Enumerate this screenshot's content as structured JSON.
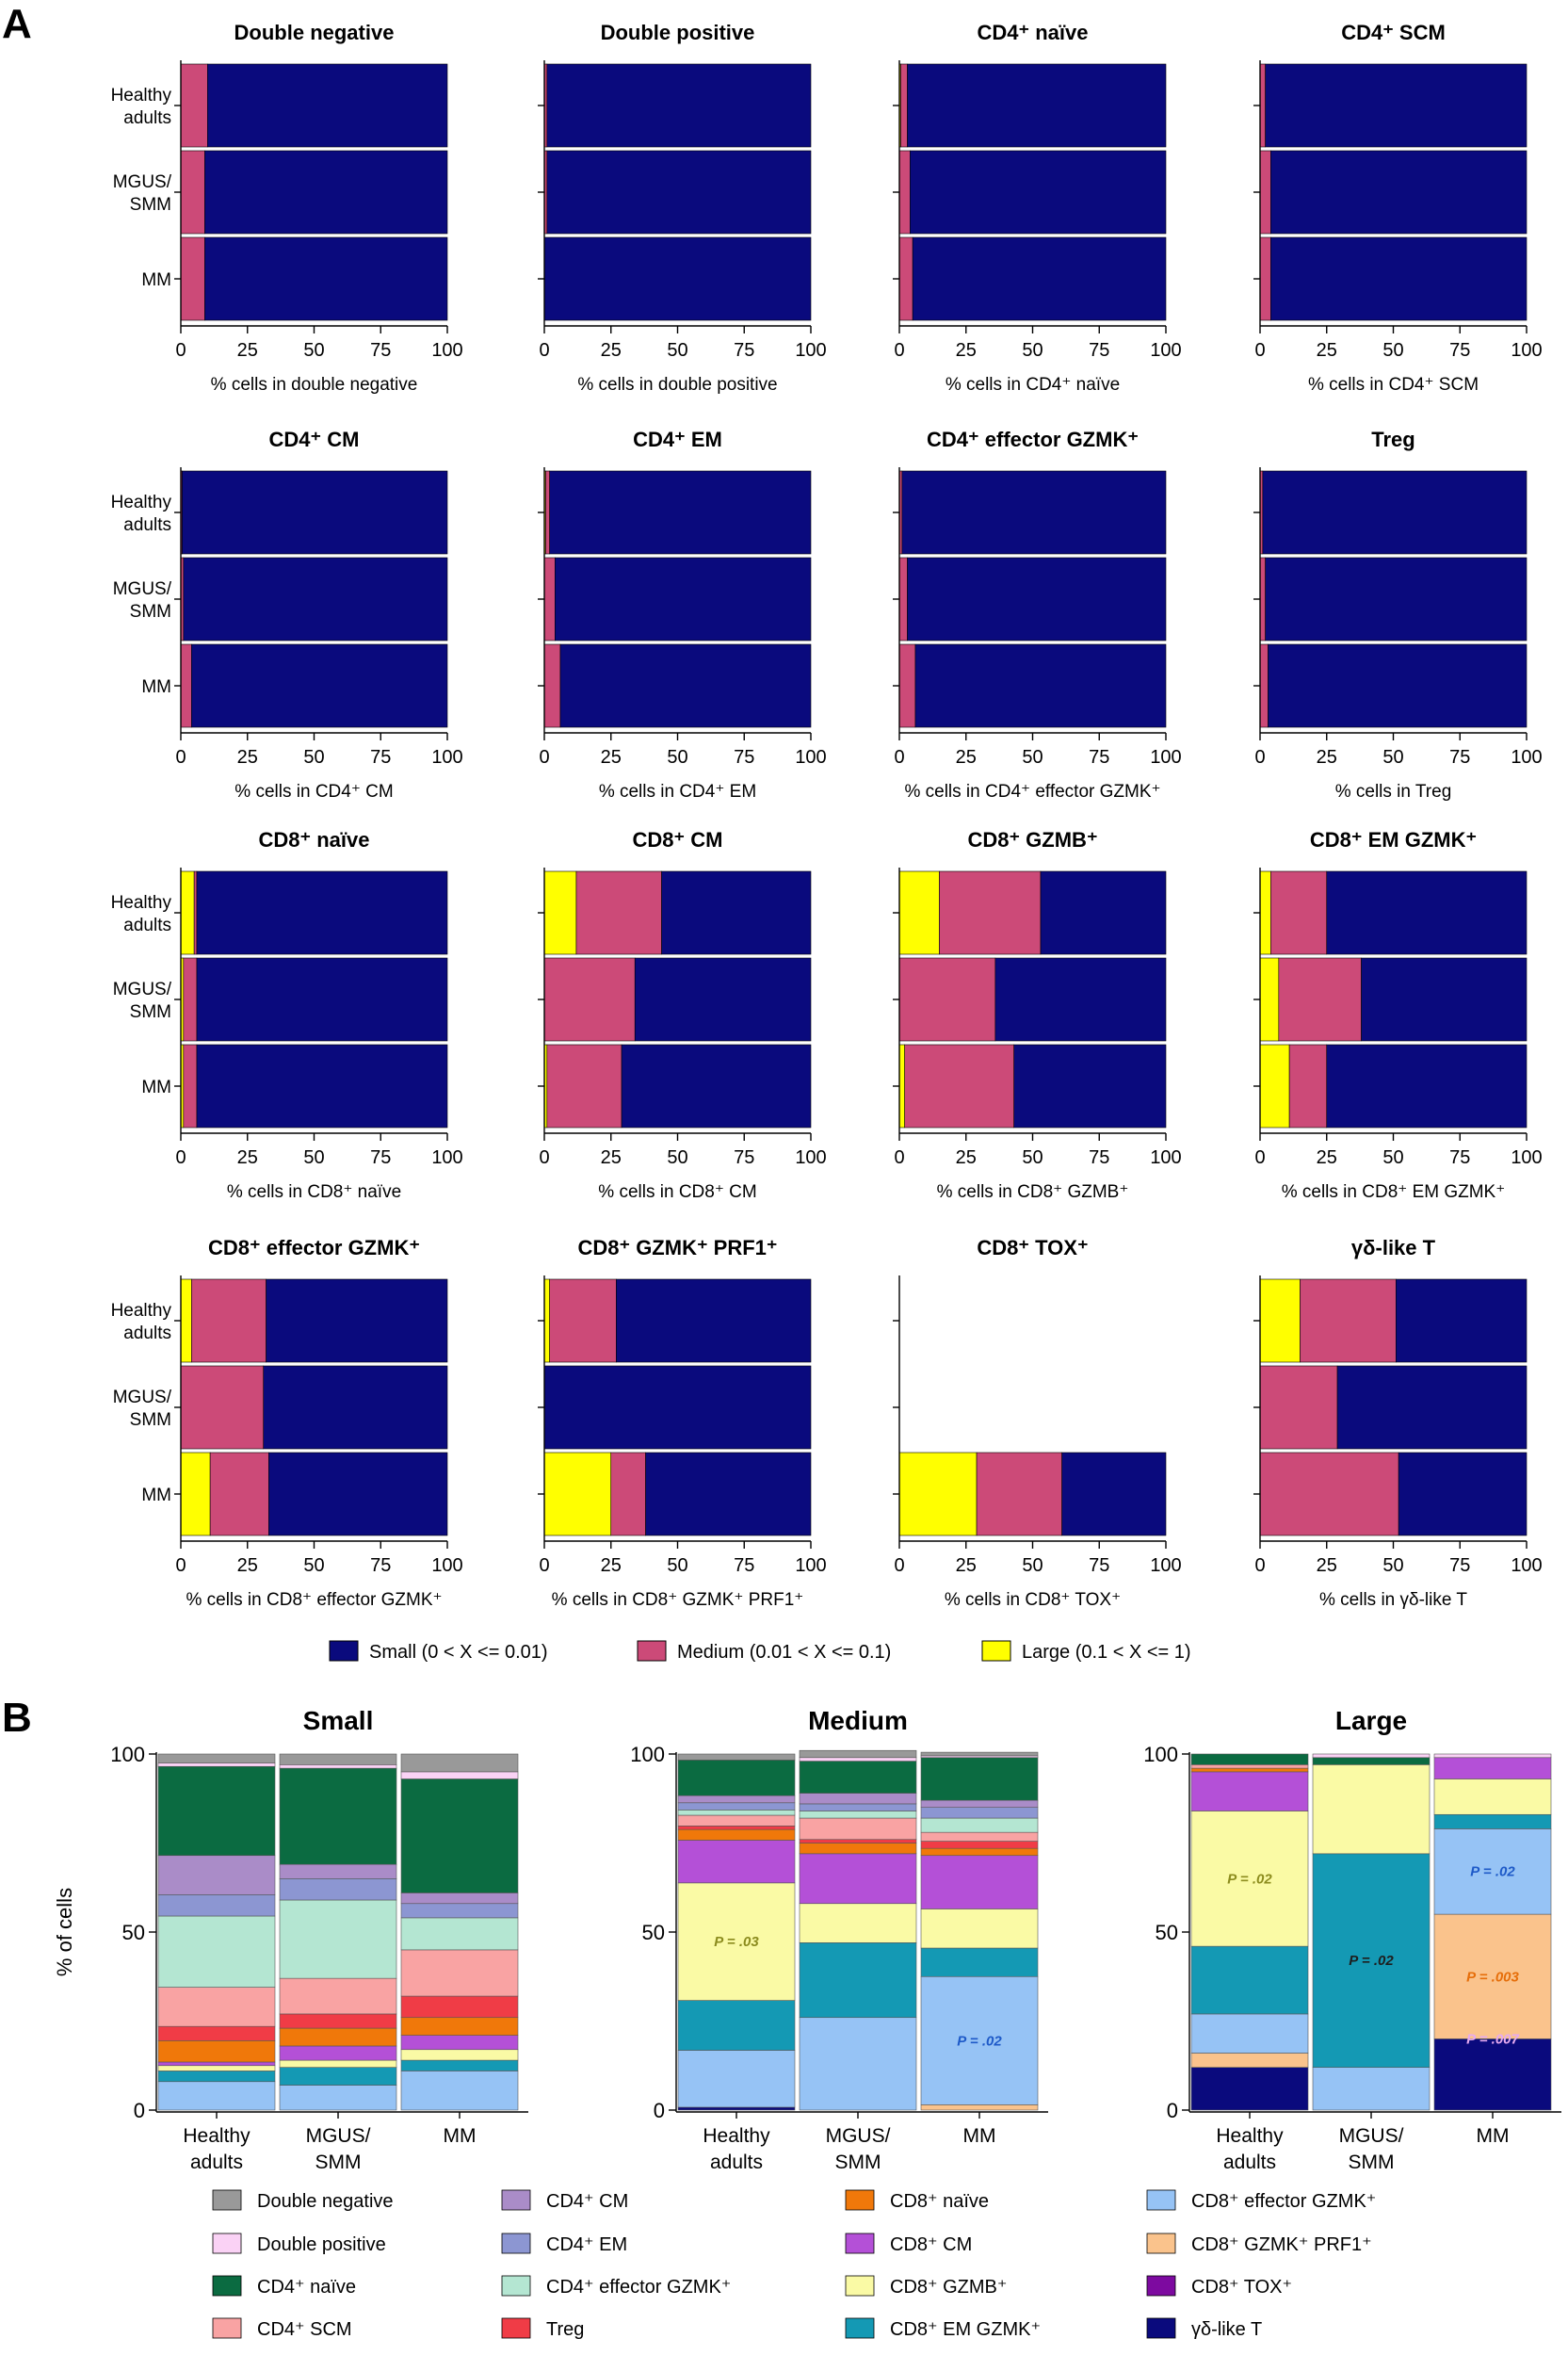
{
  "panel_labels": {
    "a": "A",
    "b": "B"
  },
  "colors": {
    "small": "#0a0a7d",
    "medium": "#cc4a78",
    "large": "#ffff00"
  },
  "legend_a": [
    {
      "key": "small",
      "label": "Small (0 < X <= 0.01)"
    },
    {
      "key": "medium",
      "label": "Medium (0.01 < X <= 0.1)"
    },
    {
      "key": "large",
      "label": "Large (0.1 < X <= 1)"
    }
  ],
  "chart_data": [
    {
      "panel": "A",
      "type": "bar",
      "orientation": "horizontal",
      "stacked": true,
      "categories": [
        "Healthy adults",
        "MGUS/ SMM",
        "MM"
      ],
      "xlim": [
        0,
        100
      ],
      "xticks": [
        0,
        25,
        50,
        75,
        100
      ],
      "stack_order": [
        "large",
        "medium",
        "small"
      ],
      "subplots": [
        {
          "title": "Double negative",
          "xlabel": "% cells in double negative",
          "series": [
            {
              "name": "large",
              "values": [
                0,
                0,
                0
              ]
            },
            {
              "name": "medium",
              "values": [
                10,
                9,
                9
              ]
            },
            {
              "name": "small",
              "values": [
                90,
                91,
                91
              ]
            }
          ]
        },
        {
          "title": "Double positive",
          "xlabel": "% cells in double positive",
          "series": [
            {
              "name": "large",
              "values": [
                0,
                0,
                0
              ]
            },
            {
              "name": "medium",
              "values": [
                1,
                1,
                0
              ]
            },
            {
              "name": "small",
              "values": [
                99,
                99,
                100
              ]
            }
          ]
        },
        {
          "title": "CD4⁺ naïve",
          "xlabel": "% cells in CD4⁺ naïve",
          "series": [
            {
              "name": "large",
              "values": [
                0.5,
                0,
                0
              ]
            },
            {
              "name": "medium",
              "values": [
                2.5,
                4,
                5
              ]
            },
            {
              "name": "small",
              "values": [
                97,
                96,
                95
              ]
            }
          ]
        },
        {
          "title": "CD4⁺ SCM",
          "xlabel": "% cells in CD4⁺ SCM",
          "series": [
            {
              "name": "large",
              "values": [
                0,
                0,
                0
              ]
            },
            {
              "name": "medium",
              "values": [
                2,
                4,
                4
              ]
            },
            {
              "name": "small",
              "values": [
                98,
                96,
                96
              ]
            }
          ]
        },
        {
          "title": "CD4⁺ CM",
          "xlabel": "% cells in CD4⁺ CM",
          "series": [
            {
              "name": "large",
              "values": [
                0,
                0,
                0
              ]
            },
            {
              "name": "medium",
              "values": [
                0.5,
                1,
                4
              ]
            },
            {
              "name": "small",
              "values": [
                99.5,
                99,
                96
              ]
            }
          ]
        },
        {
          "title": "CD4⁺ EM",
          "xlabel": "% cells in CD4⁺ EM",
          "series": [
            {
              "name": "large",
              "values": [
                0.5,
                0,
                0
              ]
            },
            {
              "name": "medium",
              "values": [
                1.5,
                4,
                6
              ]
            },
            {
              "name": "small",
              "values": [
                98,
                96,
                94
              ]
            }
          ]
        },
        {
          "title": "CD4⁺ effector GZMK⁺",
          "xlabel": "% cells in CD4⁺ effector GZMK⁺",
          "series": [
            {
              "name": "large",
              "values": [
                0,
                0,
                0
              ]
            },
            {
              "name": "medium",
              "values": [
                1,
                3,
                6
              ]
            },
            {
              "name": "small",
              "values": [
                99,
                97,
                94
              ]
            }
          ]
        },
        {
          "title": "Treg",
          "xlabel": "% cells in Treg",
          "series": [
            {
              "name": "large",
              "values": [
                0,
                0,
                0
              ]
            },
            {
              "name": "medium",
              "values": [
                1,
                2,
                3
              ]
            },
            {
              "name": "small",
              "values": [
                99,
                98,
                97
              ]
            }
          ]
        },
        {
          "title": "CD8⁺ naïve",
          "xlabel": "% cells in CD8⁺ naïve",
          "series": [
            {
              "name": "large",
              "values": [
                5,
                1,
                1
              ]
            },
            {
              "name": "medium",
              "values": [
                1,
                5,
                5
              ]
            },
            {
              "name": "small",
              "values": [
                94,
                94,
                94
              ]
            }
          ]
        },
        {
          "title": "CD8⁺ CM",
          "xlabel": "% cells in CD8⁺ CM",
          "series": [
            {
              "name": "large",
              "values": [
                12,
                0,
                1
              ]
            },
            {
              "name": "medium",
              "values": [
                32,
                34,
                28
              ]
            },
            {
              "name": "small",
              "values": [
                56,
                66,
                71
              ]
            }
          ]
        },
        {
          "title": "CD8⁺ GZMB⁺",
          "xlabel": "% cells in CD8⁺ GZMB⁺",
          "series": [
            {
              "name": "large",
              "values": [
                15,
                0,
                2
              ]
            },
            {
              "name": "medium",
              "values": [
                38,
                36,
                41
              ]
            },
            {
              "name": "small",
              "values": [
                47,
                64,
                57
              ]
            }
          ]
        },
        {
          "title": "CD8⁺ EM GZMK⁺",
          "xlabel": "% cells in CD8⁺ EM GZMK⁺",
          "series": [
            {
              "name": "large",
              "values": [
                4,
                7,
                11
              ]
            },
            {
              "name": "medium",
              "values": [
                21,
                31,
                14
              ]
            },
            {
              "name": "small",
              "values": [
                75,
                62,
                75
              ]
            }
          ]
        },
        {
          "title": "CD8⁺ effector GZMK⁺",
          "xlabel": "% cells in CD8⁺ effector GZMK⁺",
          "series": [
            {
              "name": "large",
              "values": [
                4,
                0,
                11
              ]
            },
            {
              "name": "medium",
              "values": [
                28,
                31,
                22
              ]
            },
            {
              "name": "small",
              "values": [
                68,
                69,
                67
              ]
            }
          ]
        },
        {
          "title": "CD8⁺ GZMK⁺ PRF1⁺",
          "xlabel": "% cells in CD8⁺ GZMK⁺ PRF1⁺",
          "series": [
            {
              "name": "large",
              "values": [
                2,
                0,
                25
              ]
            },
            {
              "name": "medium",
              "values": [
                25,
                0,
                13
              ]
            },
            {
              "name": "small",
              "values": [
                73,
                100,
                62
              ]
            }
          ]
        },
        {
          "title": "CD8⁺ TOX⁺",
          "xlabel": "% cells in CD8⁺ TOX⁺",
          "series": [
            {
              "name": "large",
              "values": [
                0,
                0,
                29
              ]
            },
            {
              "name": "medium",
              "values": [
                0,
                0,
                32
              ]
            },
            {
              "name": "small",
              "values": [
                0,
                0,
                39
              ]
            }
          ]
        },
        {
          "title": "γδ-like T",
          "xlabel": "% cells in γδ-like T",
          "series": [
            {
              "name": "large",
              "values": [
                15,
                0,
                0
              ]
            },
            {
              "name": "medium",
              "values": [
                36,
                29,
                52
              ]
            },
            {
              "name": "small",
              "values": [
                49,
                71,
                48
              ]
            }
          ]
        }
      ]
    },
    {
      "panel": "B",
      "type": "bar",
      "orientation": "vertical",
      "stacked": true,
      "categories": [
        "Healthy adults",
        "MGUS/ SMM",
        "MM"
      ],
      "ylabel": "% of cells",
      "ylim": [
        0,
        100
      ],
      "yticks": [
        0,
        50,
        100
      ],
      "series_names": [
        "γδ-like T",
        "CD8⁺ TOX⁺",
        "CD8⁺ GZMK⁺ PRF1⁺",
        "CD8⁺ effector GZMK⁺",
        "CD8⁺ EM GZMK⁺",
        "CD8⁺ GZMB⁺",
        "CD8⁺ CM",
        "CD8⁺ naïve",
        "Treg",
        "CD4⁺ SCM",
        "CD4⁺ effector GZMK⁺",
        "CD4⁺ EM",
        "CD4⁺ CM",
        "CD4⁺ naïve",
        "Double positive",
        "Double negative"
      ],
      "series_colors": [
        "#0a0a7d",
        "#7d0aa0",
        "#fac38c",
        "#96c3f5",
        "#1499b4",
        "#fafaa5",
        "#b450d7",
        "#f0780a",
        "#f03c46",
        "#f9a3a3",
        "#b4e6d2",
        "#8c96d2",
        "#aa8cc8",
        "#0b6b41",
        "#fad2f5",
        "#999999"
      ],
      "legend_order": [
        "Double negative",
        "Double positive",
        "CD4⁺ naïve",
        "CD4⁺ SCM",
        "CD4⁺ CM",
        "CD4⁺ EM",
        "CD4⁺ effector GZMK⁺",
        "Treg",
        "CD8⁺ naïve",
        "CD8⁺ CM",
        "CD8⁺ GZMB⁺",
        "CD8⁺ EM GZMK⁺",
        "CD8⁺ effector GZMK⁺",
        "CD8⁺ GZMK⁺ PRF1⁺",
        "CD8⁺ TOX⁺",
        "γδ-like T"
      ],
      "subplots": [
        {
          "title": "Small",
          "values": [
            [
              0,
              0,
              0
            ],
            [
              0,
              0,
              0
            ],
            [
              0,
              0,
              0
            ],
            [
              8,
              7,
              11
            ],
            [
              3,
              5,
              3
            ],
            [
              1.5,
              2,
              3
            ],
            [
              1,
              4,
              4
            ],
            [
              6,
              5,
              5
            ],
            [
              4,
              4,
              6
            ],
            [
              11,
              10,
              13
            ],
            [
              20,
              22,
              9
            ],
            [
              6,
              6,
              4
            ],
            [
              11,
              4,
              3
            ],
            [
              25,
              27,
              32
            ],
            [
              1,
              1,
              2
            ],
            [
              2.5,
              3,
              5
            ]
          ]
        },
        {
          "title": "Medium",
          "values": [
            [
              0.8,
              0,
              0
            ],
            [
              0,
              0,
              0
            ],
            [
              0,
              0,
              1.5
            ],
            [
              16,
              26,
              36
            ],
            [
              14,
              21,
              8
            ],
            [
              33,
              11,
              11
            ],
            [
              12,
              14,
              15
            ],
            [
              3,
              3,
              2
            ],
            [
              1,
              1,
              2
            ],
            [
              3,
              6,
              2.5
            ],
            [
              1.5,
              2,
              4
            ],
            [
              2,
              2,
              3
            ],
            [
              2,
              3,
              2
            ],
            [
              10,
              9,
              12
            ],
            [
              0,
              1,
              0.5
            ],
            [
              1.7,
              2,
              1
            ]
          ]
        },
        {
          "title": "Large",
          "values": [
            [
              12,
              0,
              20
            ],
            [
              0,
              0,
              0
            ],
            [
              4,
              0,
              35
            ],
            [
              11,
              12,
              24
            ],
            [
              19,
              60,
              4
            ],
            [
              38,
              25,
              10
            ],
            [
              11,
              0,
              6
            ],
            [
              1,
              0,
              0
            ],
            [
              0,
              0,
              0
            ],
            [
              1,
              0,
              0
            ],
            [
              0,
              0,
              0
            ],
            [
              0,
              0,
              0
            ],
            [
              0,
              0,
              0
            ],
            [
              3,
              2,
              0
            ],
            [
              0,
              1,
              1
            ],
            [
              0,
              0,
              0
            ]
          ]
        }
      ],
      "pvalues": [
        {
          "subplot": 1,
          "series": "CD8⁺ GZMB⁺",
          "bar": 0,
          "label": "P = .03",
          "color": "#8c8c1e"
        },
        {
          "subplot": 1,
          "series": "CD8⁺ effector GZMK⁺",
          "bar": 2,
          "label": "P = .02",
          "color": "#1e5ac8"
        },
        {
          "subplot": 2,
          "series": "CD8⁺ GZMB⁺",
          "bar": 0,
          "label": "P = .02",
          "color": "#8c8c1e"
        },
        {
          "subplot": 2,
          "series": "CD8⁺ EM GZMK⁺",
          "bar": 1,
          "label": "P = .02",
          "color": "#1e1e1e"
        },
        {
          "subplot": 2,
          "series": "CD8⁺ effector GZMK⁺",
          "bar": 2,
          "label": "P = .02",
          "color": "#1e5ac8"
        },
        {
          "subplot": 2,
          "series": "CD8⁺ GZMK⁺ PRF1⁺",
          "bar": 2,
          "label": "P = .003",
          "color": "#e66e0a"
        },
        {
          "subplot": 2,
          "series": "CD8⁺ TOX⁺",
          "bar": 2,
          "label": "P = .007",
          "color": "#e6aaf0"
        }
      ]
    }
  ]
}
